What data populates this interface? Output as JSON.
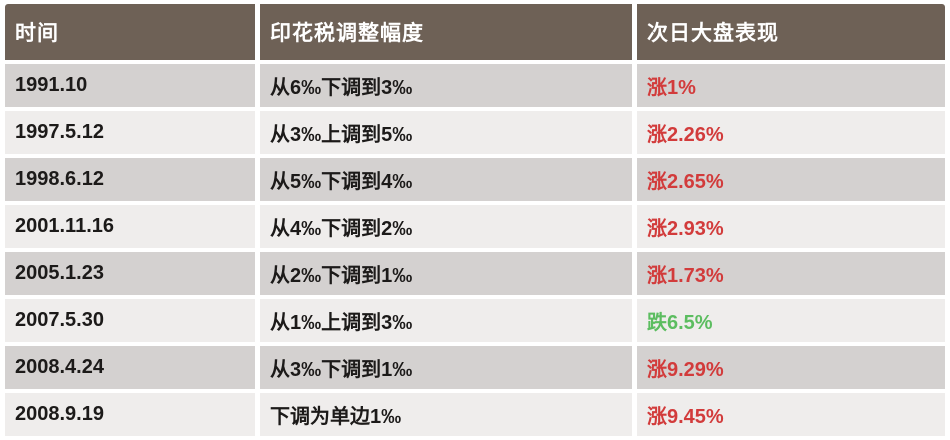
{
  "chart_data": {
    "type": "table",
    "columns": [
      {
        "key": "time",
        "label": "时间"
      },
      {
        "key": "adjustment",
        "label": "印花税调整幅度"
      },
      {
        "key": "next_day",
        "label": "次日大盘表现"
      }
    ],
    "rows": [
      {
        "time": "1991.10",
        "adjustment": "从6‰下调到3‰",
        "next_day": "涨1%",
        "direction": "up"
      },
      {
        "time": "1997.5.12",
        "adjustment": "从3‰上调到5‰",
        "next_day": "涨2.26%",
        "direction": "up"
      },
      {
        "time": "1998.6.12",
        "adjustment": "从5‰下调到4‰",
        "next_day": "涨2.65%",
        "direction": "up"
      },
      {
        "time": "2001.11.16",
        "adjustment": "从4‰下调到2‰",
        "next_day": "涨2.93%",
        "direction": "up"
      },
      {
        "time": "2005.1.23",
        "adjustment": "从2‰下调到1‰",
        "next_day": "涨1.73%",
        "direction": "up"
      },
      {
        "time": "2007.5.30",
        "adjustment": "从1‰上调到3‰",
        "next_day": "跌6.5%",
        "direction": "down"
      },
      {
        "time": "2008.4.24",
        "adjustment": "从3‰下调到1‰",
        "next_day": "涨9.29%",
        "direction": "up"
      },
      {
        "time": "2008.9.19",
        "adjustment": "下调为单边1‰",
        "next_day": "涨9.45%",
        "direction": "up"
      }
    ]
  },
  "colors": {
    "header_bg": "#6e6156",
    "header_text": "#ffffff",
    "row_odd_bg": "#d4d1d0",
    "row_even_bg": "#efedec",
    "up": "#d23b3b",
    "down": "#5cbd60"
  }
}
